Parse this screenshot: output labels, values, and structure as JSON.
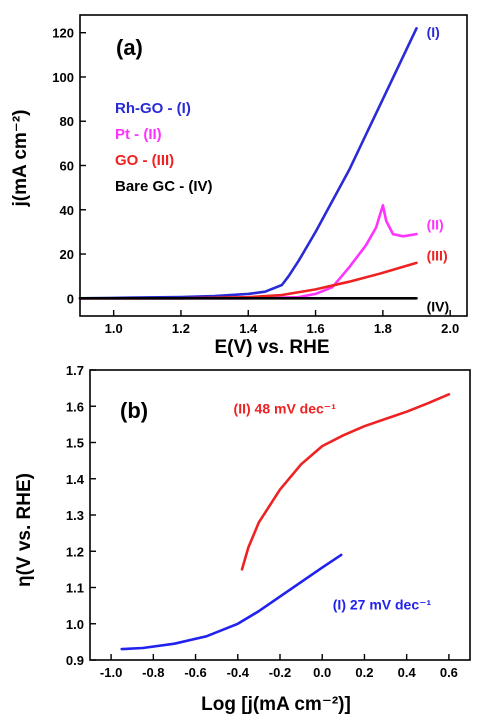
{
  "chart_data": [
    {
      "type": "line",
      "panel_label": "(a)",
      "xlabel": "E(V) vs. RHE",
      "ylabel": "j(mA cm⁻²)",
      "xlim": [
        0.9,
        2.05
      ],
      "ylim": [
        -8,
        128
      ],
      "xticks": [
        1.0,
        1.2,
        1.4,
        1.6,
        1.8,
        2.0
      ],
      "xtick_labels": [
        "1.0",
        "1.2",
        "1.4",
        "1.6",
        "1.8",
        "2.0"
      ],
      "yticks": [
        0,
        20,
        40,
        60,
        80,
        100,
        120
      ],
      "ytick_labels": [
        "0",
        "20",
        "40",
        "60",
        "80",
        "100",
        "120"
      ],
      "grid": false,
      "legend_position": "upper-left",
      "legend": [
        {
          "text": "Rh-GO - (I)",
          "color": "#2b2bd6"
        },
        {
          "text": "Pt - (II)",
          "color": "#ff33ff"
        },
        {
          "text": "GO - (III)",
          "color": "#ee2222"
        },
        {
          "text": "Bare GC - (IV)",
          "color": "#000000"
        }
      ],
      "series": [
        {
          "color": "#2b2bd6",
          "x": [
            0.9,
            1.0,
            1.1,
            1.2,
            1.3,
            1.4,
            1.45,
            1.5,
            1.52,
            1.55,
            1.6,
            1.65,
            1.7,
            1.75,
            1.8,
            1.85,
            1.9
          ],
          "y": [
            0,
            0.2,
            0.4,
            0.6,
            1,
            2,
            3,
            6,
            10,
            17,
            30,
            44,
            58,
            74,
            90,
            106,
            122
          ]
        },
        {
          "color": "#ff33ff",
          "x": [
            0.9,
            1.2,
            1.4,
            1.55,
            1.6,
            1.65,
            1.7,
            1.75,
            1.78,
            1.8,
            1.81,
            1.83,
            1.86,
            1.9
          ],
          "y": [
            0,
            0,
            0,
            0.5,
            2,
            5,
            14,
            24,
            32,
            42,
            35,
            29,
            28,
            29
          ]
        },
        {
          "color": "#ee2222",
          "x": [
            0.9,
            1.2,
            1.4,
            1.5,
            1.6,
            1.7,
            1.8,
            1.9
          ],
          "y": [
            0,
            0,
            0.5,
            1.5,
            4,
            7.5,
            11.5,
            16
          ]
        },
        {
          "color": "#000000",
          "x": [
            0.9,
            1.9
          ],
          "y": [
            0,
            0
          ]
        }
      ],
      "annotations": [
        {
          "text": "(I)",
          "x": 1.93,
          "y": 118,
          "color": "#2b2bd6"
        },
        {
          "text": "(II)",
          "x": 1.93,
          "y": 31,
          "color": "#ff33ff"
        },
        {
          "text": "(III)",
          "x": 1.93,
          "y": 17,
          "color": "#ee2222"
        },
        {
          "text": "(IV)",
          "x": 1.93,
          "y": -6,
          "color": "#000000"
        }
      ]
    },
    {
      "type": "line",
      "panel_label": "(b)",
      "xlabel": "Log [j(mA cm⁻²)]",
      "ylabel": "η(V vs. RHE)",
      "xlim": [
        -1.1,
        0.7
      ],
      "ylim": [
        0.9,
        1.7
      ],
      "xticks": [
        -1.0,
        -0.8,
        -0.6,
        -0.4,
        -0.2,
        0.0,
        0.2,
        0.4,
        0.6
      ],
      "xtick_labels": [
        "-1.0",
        "-0.8",
        "-0.6",
        "-0.4",
        "-0.2",
        "0.0",
        "0.2",
        "0.4",
        "0.6"
      ],
      "yticks": [
        0.9,
        1.0,
        1.1,
        1.2,
        1.3,
        1.4,
        1.5,
        1.6,
        1.7
      ],
      "ytick_labels": [
        "0.9",
        "1.0",
        "1.1",
        "1.2",
        "1.3",
        "1.4",
        "1.5",
        "1.6",
        "1.7"
      ],
      "grid": false,
      "series": [
        {
          "color": "#2222ee",
          "x": [
            -0.95,
            -0.85,
            -0.7,
            -0.55,
            -0.4,
            -0.3,
            -0.2,
            -0.1,
            0.0,
            0.09
          ],
          "y": [
            0.93,
            0.933,
            0.945,
            0.965,
            1.0,
            1.035,
            1.075,
            1.115,
            1.155,
            1.19
          ]
        },
        {
          "color": "#ee2222",
          "x": [
            -0.38,
            -0.35,
            -0.3,
            -0.2,
            -0.1,
            0.0,
            0.1,
            0.2,
            0.3,
            0.4,
            0.5,
            0.6
          ],
          "y": [
            1.15,
            1.21,
            1.28,
            1.37,
            1.44,
            1.49,
            1.52,
            1.545,
            1.565,
            1.585,
            1.608,
            1.633
          ]
        }
      ],
      "annotations": [
        {
          "text": "(II) 48 mV dec⁻¹",
          "x": -0.42,
          "y": 1.58,
          "color": "#ee2222"
        },
        {
          "text": "(I) 27 mV dec⁻¹",
          "x": 0.05,
          "y": 1.04,
          "color": "#2222ee"
        }
      ]
    }
  ]
}
